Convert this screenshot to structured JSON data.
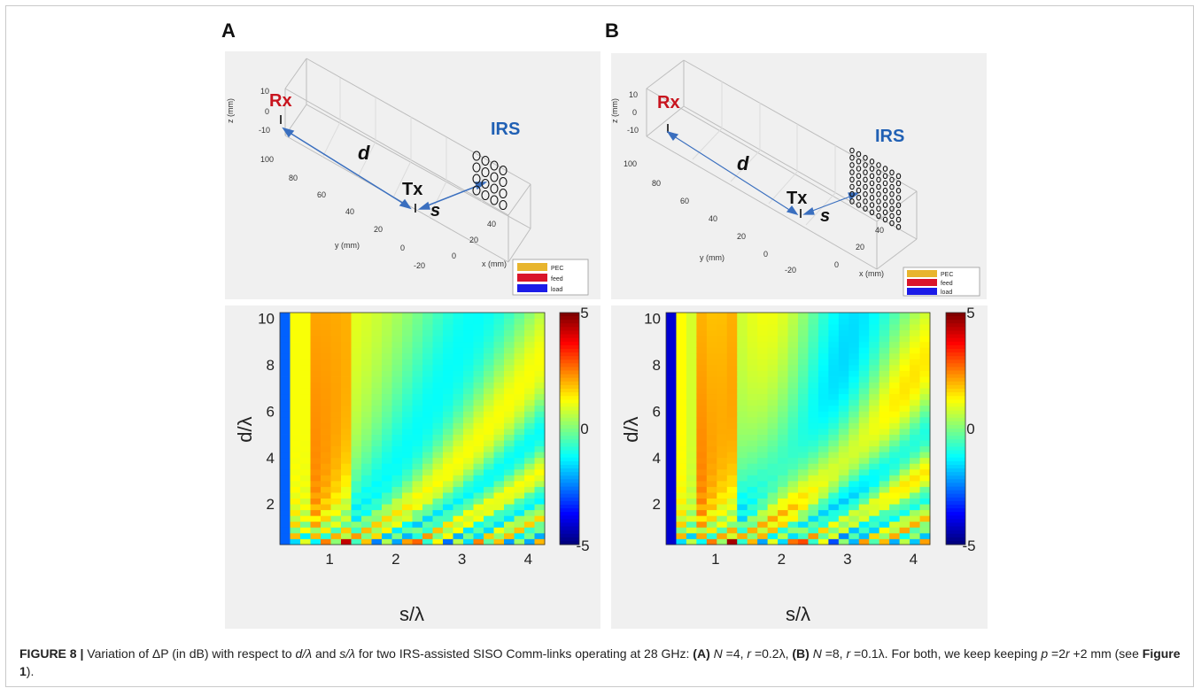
{
  "panels": [
    {
      "letter": "A",
      "geometry": {
        "labels": {
          "rx": "Rx",
          "tx": "Tx",
          "irs": "IRS",
          "d": "d",
          "s": "s"
        },
        "axes": {
          "z_label": "z (mm)",
          "z_ticks": [
            "10",
            "0",
            "-10"
          ],
          "y_label": "y (mm)",
          "y_ticks": [
            "100",
            "80",
            "60",
            "40",
            "20",
            "0",
            "-20"
          ],
          "x_label": "x (mm)",
          "x_ticks": [
            "0",
            "20",
            "40"
          ]
        },
        "legend": [
          {
            "label": "PEC",
            "color": "#e8b52e"
          },
          {
            "label": "feed",
            "color": "#d9152b"
          },
          {
            "label": "load",
            "color": "#1c1ce8"
          }
        ],
        "irs_grid": 4
      }
    },
    {
      "letter": "B",
      "geometry": {
        "labels": {
          "rx": "Rx",
          "tx": "Tx",
          "irs": "IRS",
          "d": "d",
          "s": "s"
        },
        "axes": {
          "z_label": "z (mm)",
          "z_ticks": [
            "10",
            "0",
            "-10"
          ],
          "y_label": "y (mm)",
          "y_ticks": [
            "100",
            "80",
            "60",
            "40",
            "20",
            "0",
            "-20"
          ],
          "x_label": "x (mm)",
          "x_ticks": [
            "0",
            "20",
            "40"
          ]
        },
        "legend": [
          {
            "label": "PEC",
            "color": "#e8b52e"
          },
          {
            "label": "feed",
            "color": "#d9152b"
          },
          {
            "label": "load",
            "color": "#1c1ce8"
          }
        ],
        "irs_grid": 8
      }
    }
  ],
  "chart_data": [
    {
      "type": "heatmap",
      "panel": "A",
      "xlabel": "s/λ",
      "ylabel": "d/λ",
      "xlim": [
        0.25,
        4.25
      ],
      "ylim": [
        0.25,
        10.25
      ],
      "x_ticks": [
        "1",
        "2",
        "3",
        "4"
      ],
      "y_ticks": [
        "2",
        "4",
        "6",
        "8",
        "10"
      ],
      "colorbar": {
        "min": -5,
        "max": 5,
        "ticks": [
          "5",
          "0",
          "-5"
        ],
        "colormap": "jet"
      },
      "model": {
        "cols": 26,
        "rows": 40,
        "n": 4
      }
    },
    {
      "type": "heatmap",
      "panel": "B",
      "xlabel": "s/λ",
      "ylabel": "d/λ",
      "xlim": [
        0.25,
        4.25
      ],
      "ylim": [
        0.25,
        10.25
      ],
      "x_ticks": [
        "1",
        "2",
        "3",
        "4"
      ],
      "y_ticks": [
        "2",
        "4",
        "6",
        "8",
        "10"
      ],
      "colorbar": {
        "min": -5,
        "max": 5,
        "ticks": [
          "5",
          "0",
          "-5"
        ],
        "colormap": "jet"
      },
      "model": {
        "cols": 26,
        "rows": 40,
        "n": 8
      }
    }
  ],
  "caption": {
    "label": "FIGURE 8 |",
    "p1": " Variation of ΔP (in dB) with respect to ",
    "dl": "d/λ",
    "p2": " and ",
    "sl": "s/λ",
    "p3": " for two IRS-assisted SISO Comm-links operating at 28 GHz: ",
    "a": "(A)",
    "a_n": "N",
    "a_nv": " =4, ",
    "a_r": "r",
    "a_rv": " =0.2λ, ",
    "b": "(B)",
    "b_n": "N",
    "b_nv": " =8, ",
    "b_r": "r",
    "b_rv": " =0.1λ. For both, we keep keeping ",
    "p_var": "p",
    "p_eq": " =2",
    "r_var": "r",
    "p_rest": " +2 mm (see ",
    "fig": "Figure 1",
    "end": ")."
  }
}
